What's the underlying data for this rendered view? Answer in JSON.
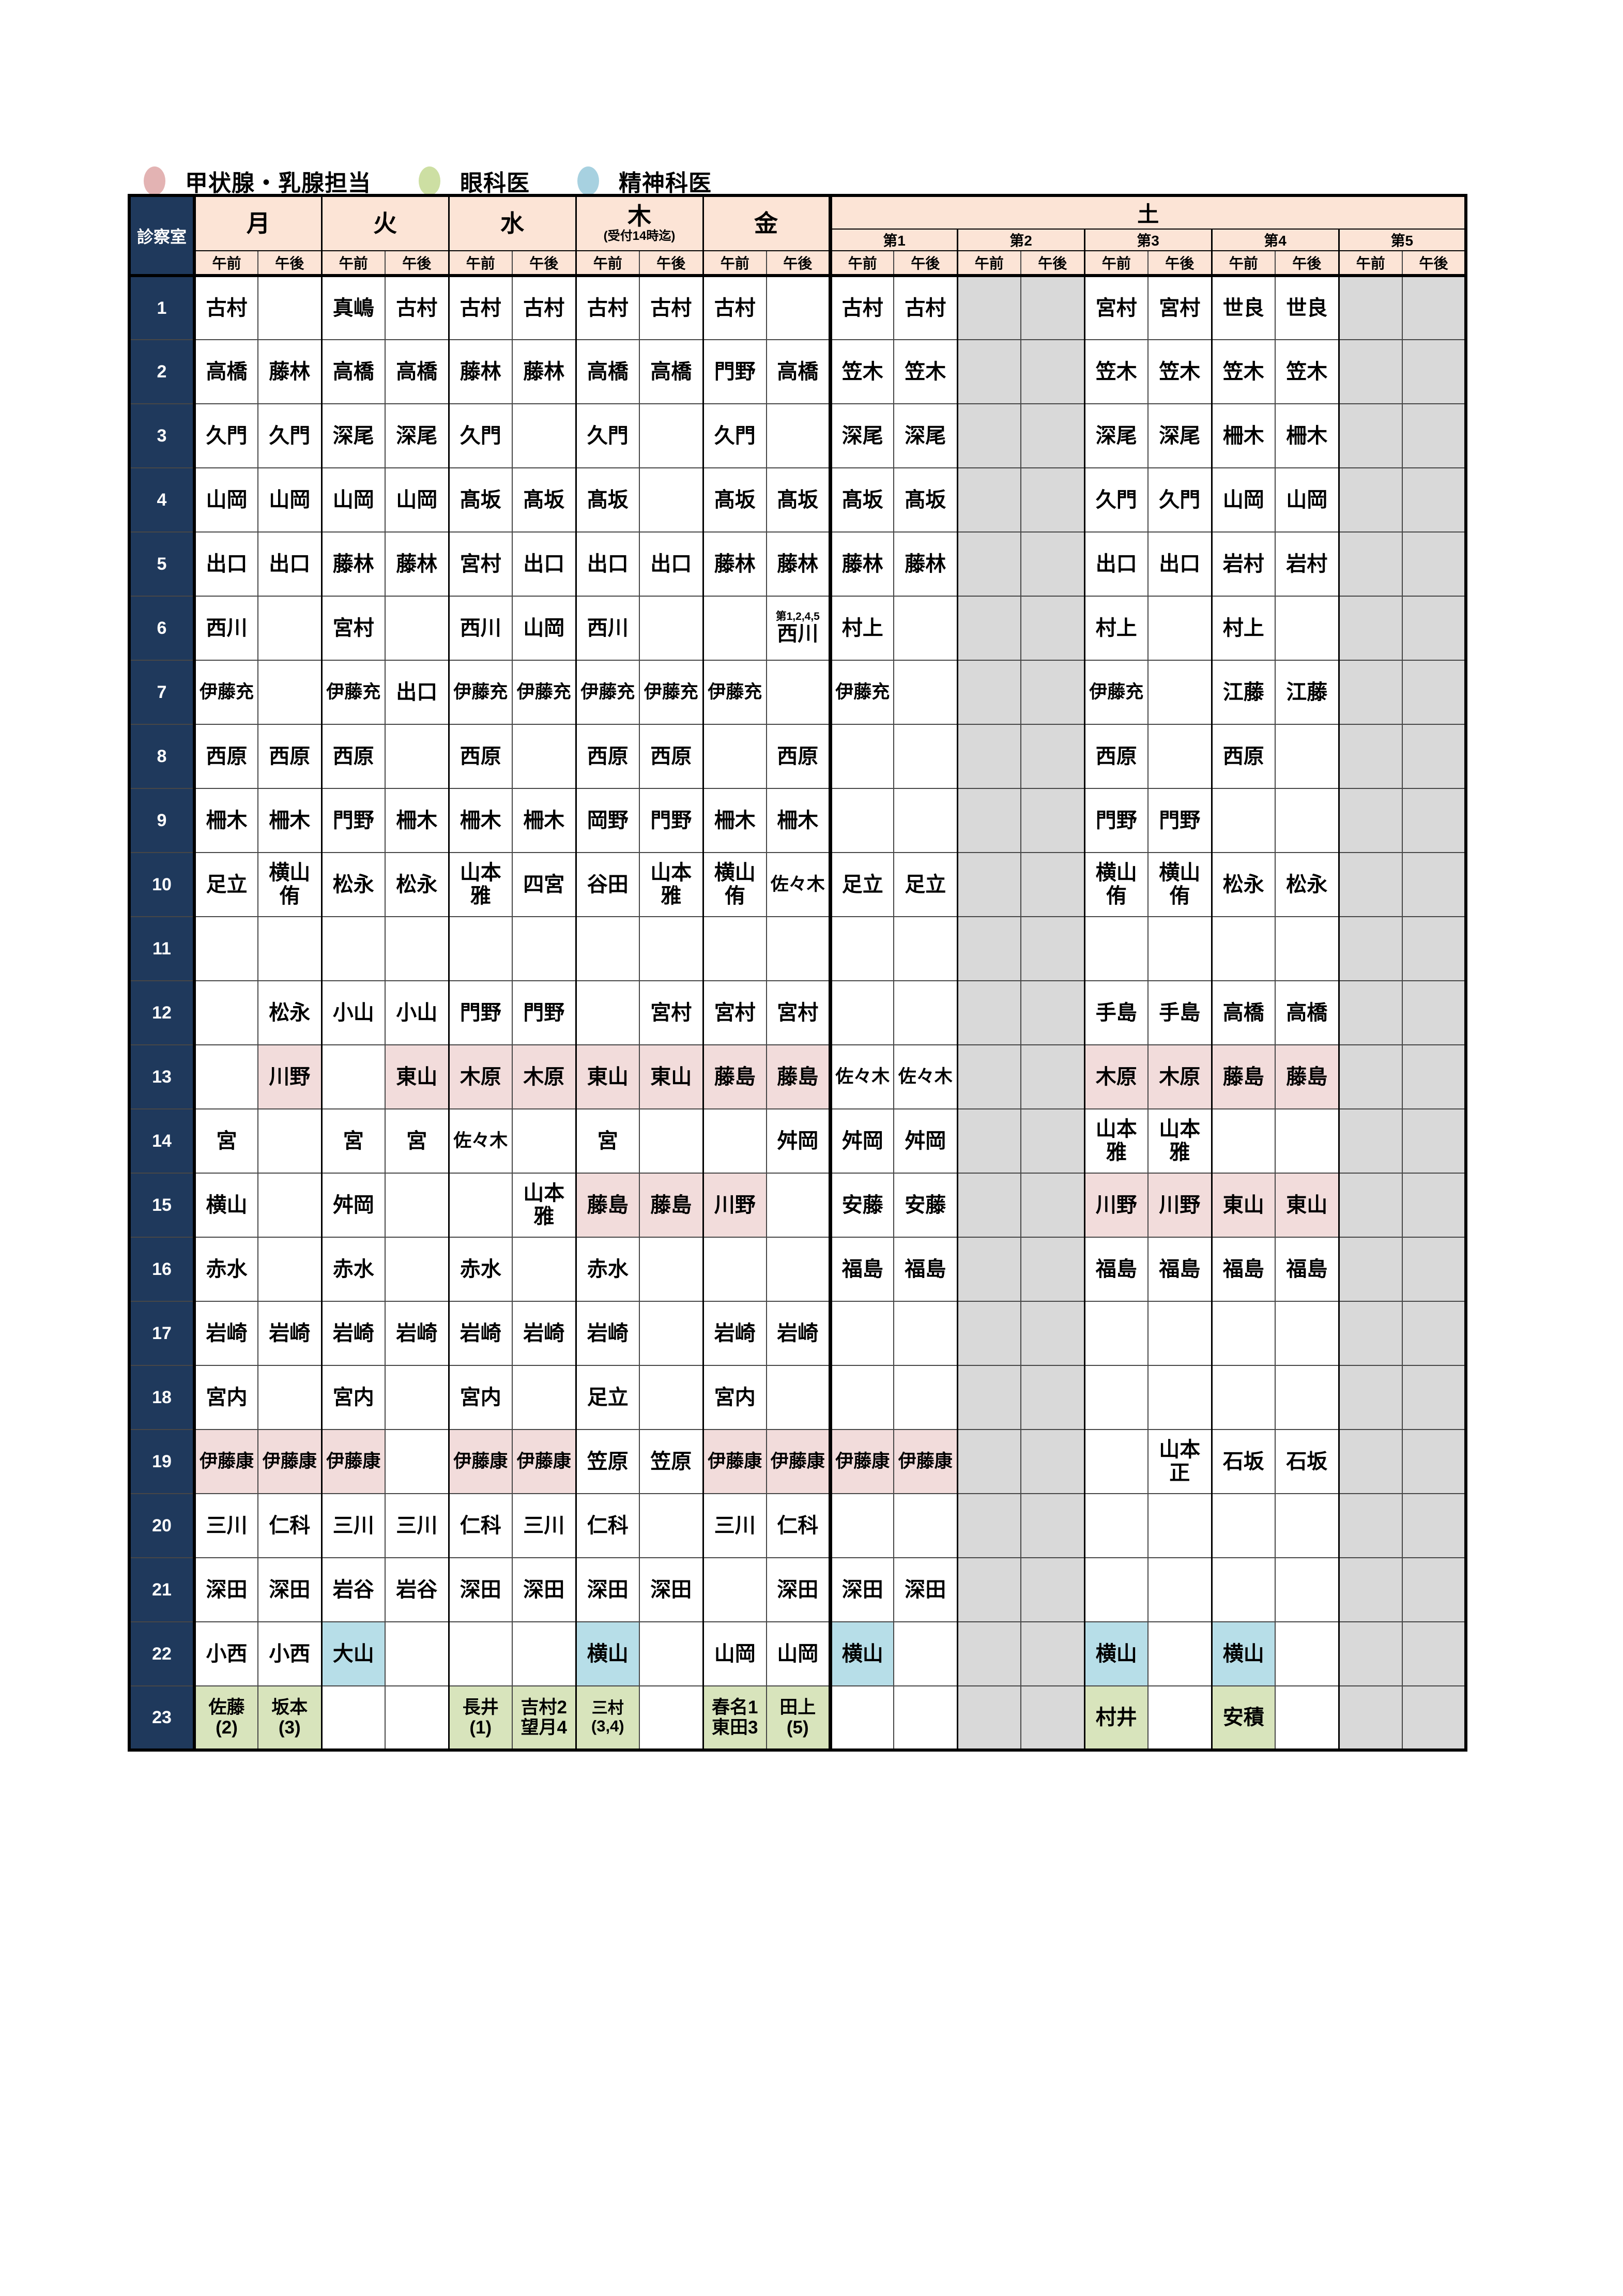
{
  "colors": {
    "navy": "#1f395c",
    "peach": "#fce4d6",
    "pink": "#f2dcdb",
    "green": "#d8e4bc",
    "blue": "#b7dee8",
    "gray": "#d9d9d9"
  },
  "legend": [
    {
      "key": "thyroid-breast",
      "label": "甲状腺・乳腺担当",
      "color": "#e3b3b3"
    },
    {
      "key": "ophthalmologist",
      "label": "眼科医",
      "color": "#cddfa3"
    },
    {
      "key": "psychiatrist",
      "label": "精神科医",
      "color": "#a7d1e0"
    }
  ],
  "header": {
    "room_label": "診察室",
    "days": [
      {
        "label": "月"
      },
      {
        "label": "火"
      },
      {
        "label": "水"
      },
      {
        "label": "木",
        "note": "(受付14時迄)"
      },
      {
        "label": "金"
      }
    ],
    "saturday": {
      "label": "土",
      "weeks": [
        "第1",
        "第2",
        "第3",
        "第4",
        "第5"
      ]
    },
    "am": "午前",
    "pm": "午後"
  },
  "gray_columns": [
    12,
    13,
    18,
    19
  ],
  "rows": [
    {
      "n": "1",
      "c": [
        "古村",
        "",
        "真嶋",
        "古村",
        "古村",
        "古村",
        "古村",
        "古村",
        "古村",
        "",
        "古村",
        "古村",
        "",
        "",
        "宮村",
        "宮村",
        "世良",
        "世良",
        "",
        ""
      ]
    },
    {
      "n": "2",
      "c": [
        "高橋",
        "藤林",
        "高橋",
        "高橋",
        "藤林",
        "藤林",
        "高橋",
        "高橋",
        "門野",
        "高橋",
        "笠木",
        "笠木",
        "",
        "",
        "笠木",
        "笠木",
        "笠木",
        "笠木",
        "",
        ""
      ]
    },
    {
      "n": "3",
      "c": [
        "久門",
        "久門",
        "深尾",
        "深尾",
        "久門",
        "",
        "久門",
        "",
        "久門",
        "",
        "深尾",
        "深尾",
        "",
        "",
        "深尾",
        "深尾",
        "柵木",
        "柵木",
        "",
        ""
      ]
    },
    {
      "n": "4",
      "c": [
        "山岡",
        "山岡",
        "山岡",
        "山岡",
        "髙坂",
        "髙坂",
        "髙坂",
        "",
        "髙坂",
        "髙坂",
        "髙坂",
        "髙坂",
        "",
        "",
        "久門",
        "久門",
        "山岡",
        "山岡",
        "",
        ""
      ]
    },
    {
      "n": "5",
      "c": [
        "出口",
        "出口",
        "藤林",
        "藤林",
        "宮村",
        "出口",
        "出口",
        "出口",
        "藤林",
        "藤林",
        "藤林",
        "藤林",
        "",
        "",
        "出口",
        "出口",
        "岩村",
        "岩村",
        "",
        ""
      ]
    },
    {
      "n": "6",
      "c": [
        "西川",
        "",
        "宮村",
        "",
        "西川",
        "山岡",
        "西川",
        "",
        "",
        {
          "t": "西川",
          "note": "第1,2,4,5"
        },
        "村上",
        "",
        "",
        "",
        "村上",
        "",
        "村上",
        "",
        "",
        ""
      ]
    },
    {
      "n": "7",
      "c": [
        "伊藤充",
        "",
        "伊藤充",
        "出口",
        "伊藤充",
        "伊藤充",
        "伊藤充",
        "伊藤充",
        "伊藤充",
        "",
        "伊藤充",
        "",
        "",
        "",
        "伊藤充",
        "",
        "江藤",
        "江藤",
        "",
        ""
      ]
    },
    {
      "n": "8",
      "c": [
        "西原",
        "西原",
        "西原",
        "",
        "西原",
        "",
        "西原",
        "西原",
        "",
        "西原",
        "",
        "",
        "",
        "",
        "西原",
        "",
        "西原",
        "",
        "",
        ""
      ]
    },
    {
      "n": "9",
      "c": [
        "柵木",
        "柵木",
        "門野",
        "柵木",
        "柵木",
        "柵木",
        "岡野",
        "門野",
        "柵木",
        "柵木",
        "",
        "",
        "",
        "",
        "門野",
        "門野",
        "",
        "",
        "",
        ""
      ]
    },
    {
      "n": "10",
      "c": [
        "足立",
        "横山\n侑",
        "松永",
        "松永",
        "山本\n雅",
        "四宮",
        "谷田",
        "山本\n雅",
        "横山\n侑",
        "佐々木",
        "足立",
        "足立",
        "",
        "",
        "横山\n侑",
        "横山\n侑",
        "松永",
        "松永",
        "",
        ""
      ]
    },
    {
      "n": "11",
      "c": [
        "",
        "",
        "",
        "",
        "",
        "",
        "",
        "",
        "",
        "",
        "",
        "",
        "",
        "",
        "",
        "",
        "",
        "",
        "",
        ""
      ]
    },
    {
      "n": "12",
      "c": [
        "",
        "松永",
        "小山",
        "小山",
        "門野",
        "門野",
        "",
        "宮村",
        "宮村",
        "宮村",
        "",
        "",
        "",
        "",
        "手島",
        "手島",
        "高橋",
        "高橋",
        "",
        ""
      ]
    },
    {
      "n": "13",
      "c": [
        "",
        {
          "t": "川野",
          "bg": "p"
        },
        "",
        {
          "t": "東山",
          "bg": "p"
        },
        {
          "t": "木原",
          "bg": "p"
        },
        {
          "t": "木原",
          "bg": "p"
        },
        {
          "t": "東山",
          "bg": "p"
        },
        {
          "t": "東山",
          "bg": "p"
        },
        {
          "t": "藤島",
          "bg": "p"
        },
        {
          "t": "藤島",
          "bg": "p"
        },
        "佐々木",
        "佐々木",
        "",
        "",
        {
          "t": "木原",
          "bg": "p"
        },
        {
          "t": "木原",
          "bg": "p"
        },
        {
          "t": "藤島",
          "bg": "p"
        },
        {
          "t": "藤島",
          "bg": "p"
        },
        "",
        ""
      ]
    },
    {
      "n": "14",
      "c": [
        "宮",
        "",
        "宮",
        "宮",
        "佐々木",
        "",
        "宮",
        "",
        "",
        "舛岡",
        "舛岡",
        "舛岡",
        "",
        "",
        "山本\n雅",
        "山本\n雅",
        "",
        "",
        "",
        ""
      ]
    },
    {
      "n": "15",
      "c": [
        "横山",
        "",
        "舛岡",
        "",
        "",
        "山本\n雅",
        {
          "t": "藤島",
          "bg": "p"
        },
        {
          "t": "藤島",
          "bg": "p"
        },
        {
          "t": "川野",
          "bg": "p"
        },
        "",
        "安藤",
        "安藤",
        "",
        "",
        {
          "t": "川野",
          "bg": "p"
        },
        {
          "t": "川野",
          "bg": "p"
        },
        {
          "t": "東山",
          "bg": "p"
        },
        {
          "t": "東山",
          "bg": "p"
        },
        "",
        ""
      ]
    },
    {
      "n": "16",
      "c": [
        "赤水",
        "",
        "赤水",
        "",
        "赤水",
        "",
        "赤水",
        "",
        "",
        "",
        "福島",
        "福島",
        "",
        "",
        "福島",
        "福島",
        "福島",
        "福島",
        "",
        ""
      ]
    },
    {
      "n": "17",
      "c": [
        "岩崎",
        "岩崎",
        "岩崎",
        "岩崎",
        "岩崎",
        "岩崎",
        "岩崎",
        "",
        "岩崎",
        "岩崎",
        "",
        "",
        "",
        "",
        "",
        "",
        "",
        "",
        "",
        ""
      ]
    },
    {
      "n": "18",
      "c": [
        "宮内",
        "",
        "宮内",
        "",
        "宮内",
        "",
        "足立",
        "",
        "宮内",
        "",
        "",
        "",
        "",
        "",
        "",
        "",
        "",
        "",
        "",
        ""
      ]
    },
    {
      "n": "19",
      "c": [
        {
          "t": "伊藤康",
          "bg": "p"
        },
        {
          "t": "伊藤康",
          "bg": "p"
        },
        {
          "t": "伊藤康",
          "bg": "p"
        },
        "",
        {
          "t": "伊藤康",
          "bg": "p"
        },
        {
          "t": "伊藤康",
          "bg": "p"
        },
        "笠原",
        "笠原",
        {
          "t": "伊藤康",
          "bg": "p"
        },
        {
          "t": "伊藤康",
          "bg": "p"
        },
        {
          "t": "伊藤康",
          "bg": "p"
        },
        {
          "t": "伊藤康",
          "bg": "p"
        },
        "",
        "",
        "",
        "山本\n正",
        "石坂",
        "石坂",
        "",
        ""
      ]
    },
    {
      "n": "20",
      "c": [
        "三川",
        "仁科",
        "三川",
        "三川",
        "仁科",
        "三川",
        "仁科",
        "",
        "三川",
        "仁科",
        "",
        "",
        "",
        "",
        "",
        "",
        "",
        "",
        "",
        ""
      ]
    },
    {
      "n": "21",
      "c": [
        "深田",
        "深田",
        "岩谷",
        "岩谷",
        "深田",
        "深田",
        "深田",
        "深田",
        "",
        "深田",
        "深田",
        "深田",
        "",
        "",
        "",
        "",
        "",
        "",
        "",
        ""
      ]
    },
    {
      "n": "22",
      "c": [
        "小西",
        "小西",
        {
          "t": "大山",
          "bg": "b"
        },
        "",
        "",
        "",
        {
          "t": "横山",
          "bg": "b"
        },
        "",
        "山岡",
        "山岡",
        {
          "t": "横山",
          "bg": "b"
        },
        "",
        "",
        "",
        {
          "t": "横山",
          "bg": "b"
        },
        "",
        {
          "t": "横山",
          "bg": "b"
        },
        "",
        "",
        ""
      ]
    },
    {
      "n": "23",
      "c": [
        {
          "t": "佐藤\n(2)",
          "bg": "g"
        },
        {
          "t": "坂本\n(3)",
          "bg": "g"
        },
        "",
        "",
        {
          "t": "長井\n(1)",
          "bg": "g"
        },
        {
          "t": "吉村2\n望月4",
          "bg": "g"
        },
        {
          "t": "三村\n(3,4)",
          "bg": "g"
        },
        "",
        {
          "t": "春名1\n東田3",
          "bg": "g"
        },
        {
          "t": "田上\n(5)",
          "bg": "g"
        },
        "",
        "",
        "",
        "",
        {
          "t": "村井",
          "bg": "g"
        },
        "",
        {
          "t": "安積",
          "bg": "g"
        },
        "",
        "",
        ""
      ]
    }
  ]
}
